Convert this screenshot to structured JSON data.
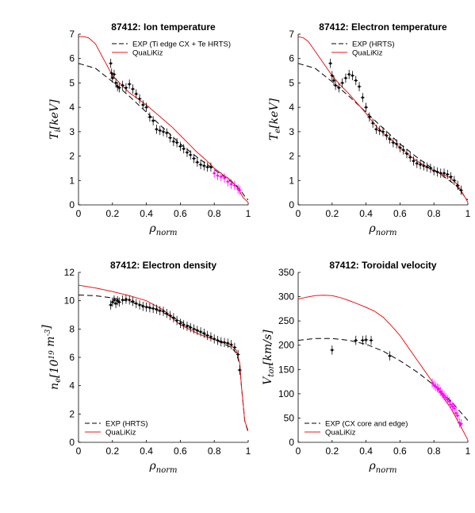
{
  "colors": {
    "exp": "#000000",
    "model": "#e41a1c",
    "edge": "#ff00ff",
    "axes": "#000000"
  },
  "chart_data": [
    {
      "type": "line",
      "title": "87412: Ion temperature",
      "xlabel": "ρnorm",
      "ylabel": "Ti[keV]",
      "xlim": [
        0,
        1
      ],
      "ylim": [
        0,
        7
      ],
      "xticks": [
        0,
        0.2,
        0.4,
        0.6,
        0.8,
        1
      ],
      "xtick_labels": [
        "0",
        "0.2",
        "0.4",
        "0.6",
        "0.8",
        "1"
      ],
      "yticks": [
        0,
        1,
        2,
        3,
        4,
        5,
        6,
        7
      ],
      "ytick_labels": [
        "0",
        "1",
        "2",
        "3",
        "4",
        "5",
        "6",
        "7"
      ],
      "legend_position": "top-right",
      "series": [
        {
          "name": "EXP (Ti edge CX + Te HRTS)",
          "style": "dashed",
          "color": "#000000",
          "x": [
            0,
            0.1,
            0.2,
            0.3,
            0.4,
            0.5,
            0.6,
            0.7,
            0.8,
            0.85,
            0.9,
            0.93,
            0.96,
            0.98,
            1.0
          ],
          "y": [
            5.8,
            5.6,
            5.05,
            4.45,
            3.8,
            3.15,
            2.5,
            1.95,
            1.45,
            1.2,
            0.95,
            0.8,
            0.55,
            0.35,
            0.2
          ]
        },
        {
          "name": "QuaLiKiz",
          "style": "solid",
          "color": "#e41a1c",
          "x": [
            0,
            0.03,
            0.06,
            0.1,
            0.15,
            0.2,
            0.25,
            0.3,
            0.4,
            0.5,
            0.55,
            0.6,
            0.65,
            0.7,
            0.75,
            0.8,
            0.85,
            0.9,
            0.93,
            0.95,
            0.97,
            1.0
          ],
          "y": [
            6.9,
            6.9,
            6.85,
            6.6,
            5.95,
            5.3,
            4.95,
            4.6,
            4.1,
            3.5,
            3.2,
            2.85,
            2.5,
            2.15,
            1.85,
            1.5,
            1.25,
            1.0,
            0.75,
            0.55,
            0.3,
            0.1
          ]
        }
      ],
      "points": {
        "x": [
          0.19,
          0.195,
          0.2,
          0.21,
          0.22,
          0.23,
          0.24,
          0.26,
          0.28,
          0.3,
          0.32,
          0.34,
          0.36,
          0.38,
          0.4,
          0.42,
          0.44,
          0.46,
          0.48,
          0.5,
          0.52,
          0.54,
          0.56,
          0.58,
          0.6,
          0.62,
          0.64,
          0.66,
          0.68,
          0.7,
          0.72,
          0.74,
          0.76,
          0.78
        ],
        "y": [
          5.8,
          5.4,
          5.2,
          5.35,
          5.0,
          4.85,
          4.8,
          4.9,
          4.8,
          4.95,
          4.75,
          4.55,
          4.35,
          4.1,
          4.0,
          3.6,
          3.45,
          3.1,
          3.05,
          3.0,
          2.95,
          2.75,
          2.6,
          2.55,
          2.4,
          2.3,
          2.15,
          2.05,
          1.9,
          1.75,
          1.65,
          1.6,
          1.55,
          1.55
        ]
      },
      "edge_points": {
        "x": [
          0.8,
          0.82,
          0.84,
          0.86,
          0.88,
          0.9,
          0.92,
          0.94,
          0.95
        ],
        "y": [
          1.3,
          1.2,
          1.15,
          1.1,
          0.95,
          0.85,
          0.8,
          0.65,
          0.6
        ]
      }
    },
    {
      "type": "line",
      "title": "87412: Electron temperature",
      "xlabel": "ρnorm",
      "ylabel": "Te[keV]",
      "xlim": [
        0,
        1
      ],
      "ylim": [
        0,
        7
      ],
      "xticks": [
        0,
        0.2,
        0.4,
        0.6,
        0.8,
        1
      ],
      "xtick_labels": [
        "0",
        "0.2",
        "0.4",
        "0.6",
        "0.8",
        "1"
      ],
      "yticks": [
        0,
        1,
        2,
        3,
        4,
        5,
        6,
        7
      ],
      "ytick_labels": [
        "0",
        "1",
        "2",
        "3",
        "4",
        "5",
        "6",
        "7"
      ],
      "legend_position": "top-right",
      "series": [
        {
          "name": "EXP (HRTS)",
          "style": "dashed",
          "color": "#000000",
          "x": [
            0,
            0.1,
            0.2,
            0.3,
            0.4,
            0.5,
            0.6,
            0.7,
            0.8,
            0.85,
            0.9,
            0.93,
            0.96,
            0.98,
            1.0
          ],
          "y": [
            5.8,
            5.6,
            5.05,
            4.45,
            3.8,
            3.15,
            2.5,
            1.95,
            1.45,
            1.2,
            0.95,
            0.8,
            0.55,
            0.35,
            0.2
          ]
        },
        {
          "name": "QuaLiKiz",
          "style": "solid",
          "color": "#e41a1c",
          "x": [
            0,
            0.03,
            0.06,
            0.1,
            0.15,
            0.2,
            0.25,
            0.3,
            0.35,
            0.4,
            0.45,
            0.5,
            0.55,
            0.6,
            0.65,
            0.7,
            0.75,
            0.8,
            0.85,
            0.9,
            0.93,
            0.96,
            1.0
          ],
          "y": [
            6.9,
            6.85,
            6.7,
            6.3,
            5.8,
            5.3,
            4.9,
            4.55,
            4.15,
            3.75,
            3.3,
            2.95,
            2.65,
            2.35,
            2.05,
            1.8,
            1.6,
            1.4,
            1.25,
            1.1,
            0.9,
            0.6,
            0.1
          ]
        }
      ],
      "points": {
        "x": [
          0.19,
          0.2,
          0.21,
          0.22,
          0.24,
          0.26,
          0.28,
          0.3,
          0.32,
          0.34,
          0.36,
          0.38,
          0.4,
          0.42,
          0.44,
          0.46,
          0.48,
          0.5,
          0.52,
          0.54,
          0.56,
          0.58,
          0.6,
          0.62,
          0.64,
          0.66,
          0.68,
          0.7,
          0.72,
          0.74,
          0.76,
          0.78,
          0.8,
          0.82,
          0.84,
          0.86,
          0.88,
          0.9,
          0.92,
          0.94,
          0.96
        ],
        "y": [
          5.8,
          5.3,
          5.1,
          4.9,
          4.8,
          5.0,
          5.2,
          5.35,
          5.3,
          5.1,
          4.85,
          4.4,
          4.0,
          3.6,
          3.35,
          3.1,
          3.05,
          3.0,
          2.85,
          2.7,
          2.55,
          2.5,
          2.35,
          2.25,
          2.1,
          1.95,
          1.8,
          1.7,
          1.65,
          1.6,
          1.55,
          1.5,
          1.4,
          1.35,
          1.3,
          1.3,
          1.25,
          1.15,
          1.0,
          0.8,
          0.6
        ]
      }
    },
    {
      "type": "line",
      "title": "87412: Electron density",
      "xlabel": "ρnorm",
      "ylabel": "ne[10^19 m^-3]",
      "xlim": [
        0,
        1
      ],
      "ylim": [
        0,
        12
      ],
      "xticks": [
        0,
        0.2,
        0.4,
        0.6,
        0.8,
        1
      ],
      "xtick_labels": [
        "0",
        "0.2",
        "0.4",
        "0.6",
        "0.8",
        "1"
      ],
      "yticks": [
        0,
        2,
        4,
        6,
        8,
        10,
        12
      ],
      "ytick_labels": [
        "0",
        "2",
        "4",
        "6",
        "8",
        "10",
        "12"
      ],
      "legend_position": "bottom-left",
      "series": [
        {
          "name": "EXP (HRTS)",
          "style": "dashed",
          "color": "#000000",
          "x": [
            0,
            0.1,
            0.2,
            0.3,
            0.4,
            0.5,
            0.6,
            0.7,
            0.8,
            0.85,
            0.9,
            0.93,
            0.95,
            0.96,
            0.98,
            1.0
          ],
          "y": [
            10.4,
            10.35,
            10.2,
            9.95,
            9.6,
            9.15,
            8.55,
            7.9,
            7.25,
            7.0,
            6.7,
            6.3,
            5.5,
            4.0,
            1.5,
            0.7
          ]
        },
        {
          "name": "QuaLiKiz",
          "style": "solid",
          "color": "#e41a1c",
          "x": [
            0,
            0.1,
            0.2,
            0.3,
            0.4,
            0.5,
            0.55,
            0.6,
            0.65,
            0.7,
            0.75,
            0.8,
            0.85,
            0.9,
            0.93,
            0.95,
            0.96,
            0.98,
            1.0
          ],
          "y": [
            11.1,
            10.9,
            10.65,
            10.35,
            10.0,
            9.35,
            8.8,
            8.3,
            8.0,
            7.7,
            7.45,
            7.25,
            7.1,
            6.85,
            6.5,
            5.6,
            4.0,
            1.5,
            0.8
          ]
        }
      ],
      "points": {
        "x": [
          0.19,
          0.2,
          0.21,
          0.22,
          0.23,
          0.24,
          0.26,
          0.28,
          0.3,
          0.32,
          0.34,
          0.36,
          0.38,
          0.4,
          0.42,
          0.44,
          0.46,
          0.48,
          0.5,
          0.52,
          0.54,
          0.56,
          0.58,
          0.6,
          0.62,
          0.64,
          0.66,
          0.68,
          0.7,
          0.72,
          0.74,
          0.76,
          0.78,
          0.8,
          0.82,
          0.84,
          0.86,
          0.88,
          0.9,
          0.92,
          0.94,
          0.95
        ],
        "y": [
          9.7,
          9.9,
          10.05,
          9.8,
          10.0,
          9.9,
          10.05,
          10.1,
          10.05,
          9.95,
          9.8,
          9.7,
          9.6,
          9.55,
          9.5,
          9.45,
          9.4,
          9.3,
          9.25,
          9.1,
          8.95,
          8.8,
          8.6,
          8.4,
          8.3,
          8.2,
          8.1,
          8.0,
          7.9,
          7.8,
          7.7,
          7.55,
          7.45,
          7.3,
          7.2,
          7.1,
          7.05,
          7.0,
          6.9,
          6.7,
          6.2,
          5.1
        ]
      }
    },
    {
      "type": "line",
      "title": "87412: Toroidal velocity",
      "xlabel": "ρnorm",
      "ylabel": "Vtor[km/s]",
      "xlim": [
        0,
        1
      ],
      "ylim": [
        0,
        350
      ],
      "xticks": [
        0,
        0.2,
        0.4,
        0.6,
        0.8,
        1
      ],
      "xtick_labels": [
        "0",
        "0.2",
        "0.4",
        "0.6",
        "0.8",
        "1"
      ],
      "yticks": [
        0,
        50,
        100,
        150,
        200,
        250,
        300,
        350
      ],
      "ytick_labels": [
        "0",
        "50",
        "100",
        "150",
        "200",
        "250",
        "300",
        "350"
      ],
      "legend_position": "bottom-left",
      "series": [
        {
          "name": "EXP (CX core and edge)",
          "style": "dashed",
          "color": "#000000",
          "x": [
            0,
            0.1,
            0.2,
            0.3,
            0.4,
            0.5,
            0.6,
            0.7,
            0.8,
            0.9,
            1.0
          ],
          "y": [
            210,
            214,
            214,
            210,
            202,
            188,
            168,
            145,
            118,
            85,
            45
          ]
        },
        {
          "name": "QuaLiKiz",
          "style": "solid",
          "color": "#e41a1c",
          "x": [
            0,
            0.05,
            0.1,
            0.15,
            0.2,
            0.25,
            0.3,
            0.35,
            0.4,
            0.45,
            0.5,
            0.55,
            0.6,
            0.65,
            0.7,
            0.75,
            0.8,
            0.85,
            0.9,
            0.95,
            1.0
          ],
          "y": [
            295,
            299,
            302,
            303,
            302,
            298,
            292,
            285,
            278,
            270,
            258,
            240,
            220,
            195,
            170,
            145,
            120,
            95,
            70,
            38,
            5
          ]
        }
      ],
      "points": {
        "x": [
          0.2,
          0.34,
          0.38,
          0.4,
          0.43,
          0.54
        ],
        "y": [
          190,
          210,
          210,
          211,
          210,
          178
        ]
      },
      "edge_points": {
        "x": [
          0.79,
          0.8,
          0.81,
          0.82,
          0.83,
          0.84,
          0.85,
          0.86,
          0.87,
          0.88,
          0.89,
          0.9,
          0.91,
          0.92,
          0.93,
          0.94,
          0.95,
          0.96
        ],
        "y": [
          122,
          118,
          115,
          112,
          110,
          105,
          100,
          96,
          92,
          88,
          84,
          78,
          74,
          70,
          60,
          55,
          40,
          38
        ]
      }
    }
  ]
}
